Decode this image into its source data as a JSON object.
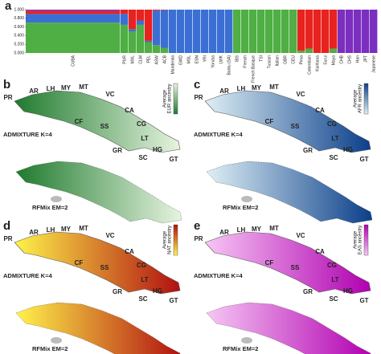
{
  "chart_data": {
    "type": "bar",
    "stacked": true,
    "panel_label": "a",
    "categories": [
      "CUBA",
      "PUR",
      "MXL",
      "CLM",
      "PEL",
      "ASW",
      "ACB",
      "Mandenka",
      "GWD",
      "MSL",
      "ESN",
      "YRI",
      "Yoruba",
      "LWK",
      "Bantu (SA)",
      "IBS",
      "French",
      "French Basque",
      "TSI",
      "Tuscan",
      "Italian",
      "GBR",
      "CEU",
      "Pima",
      "Colombian",
      "Karitiana",
      "Surui",
      "Maya",
      "CHB",
      "CHS",
      "Han",
      "JPT",
      "Japanese"
    ],
    "series": [
      {
        "color": "#4fae44",
        "values": [
          0.7,
          0.65,
          0.5,
          0.65,
          0.25,
          0.18,
          0.12,
          0,
          0,
          0,
          0,
          0,
          0,
          0,
          0,
          1,
          1,
          1,
          1,
          1,
          1,
          1,
          1,
          0.05,
          0.1,
          0,
          0,
          0.1,
          0,
          0,
          0,
          0,
          0
        ]
      },
      {
        "color": "#3b6fd4",
        "values": [
          0.2,
          0.25,
          0.05,
          0.1,
          0.03,
          0.8,
          0.87,
          1,
          1,
          1,
          1,
          1,
          1,
          1,
          1,
          0,
          0,
          0,
          0,
          0,
          0,
          0,
          0,
          0,
          0,
          0,
          0,
          0,
          0,
          0,
          0,
          0,
          0
        ]
      },
      {
        "color": "#e8221e",
        "values": [
          0.07,
          0.1,
          0.45,
          0.25,
          0.72,
          0.02,
          0.01,
          0,
          0,
          0,
          0,
          0,
          0,
          0,
          0,
          0,
          0,
          0,
          0,
          0,
          0,
          0,
          0,
          0.95,
          0.9,
          1,
          1,
          0.9,
          0,
          0,
          0,
          0,
          0
        ]
      },
      {
        "color": "#7b2fbf",
        "values": [
          0.03,
          0,
          0,
          0,
          0,
          0,
          0,
          0,
          0,
          0,
          0,
          0,
          0,
          0,
          0,
          0,
          0,
          0,
          0,
          0,
          0,
          0,
          0,
          0,
          0,
          0,
          0,
          0,
          1,
          1,
          1,
          1,
          1
        ]
      }
    ],
    "ylim": [
      0,
      1
    ],
    "yticks": [
      {
        "value": 0,
        "label": "0.000"
      },
      {
        "value": 0.2,
        "label": "0.200"
      },
      {
        "value": 0.4,
        "label": "0.400"
      },
      {
        "value": 0.6,
        "label": "0.600"
      },
      {
        "value": 0.8,
        "label": "0.800"
      },
      {
        "value": 1,
        "label": "1.000"
      }
    ]
  },
  "provinces": [
    "PR",
    "AR",
    "LH",
    "MY",
    "MT",
    "VC",
    "CA",
    "CF",
    "SS",
    "CG",
    "LT",
    "HG",
    "GR",
    "SC",
    "GT"
  ],
  "methods": [
    "ADMIXTURE K=4",
    "RFMix EM=2"
  ],
  "maps": [
    {
      "panel": "b",
      "legend_title": "Average",
      "legend_subtitle": "EUR ancestry",
      "colors": [
        "#1f7a2e",
        "#e6f4df"
      ]
    },
    {
      "panel": "c",
      "legend_title": "Average",
      "legend_subtitle": "AFR ancestry",
      "colors": [
        "#dff0f5",
        "#0b3f8a"
      ]
    },
    {
      "panel": "d",
      "legend_title": "Average",
      "legend_subtitle": "NAT ancestry",
      "colors": [
        "#fff34a",
        "#b01010"
      ]
    },
    {
      "panel": "e",
      "legend_title": "Average",
      "legend_subtitle": "EAS ancestry",
      "colors": [
        "#f7c6f4",
        "#b000b0"
      ]
    }
  ]
}
